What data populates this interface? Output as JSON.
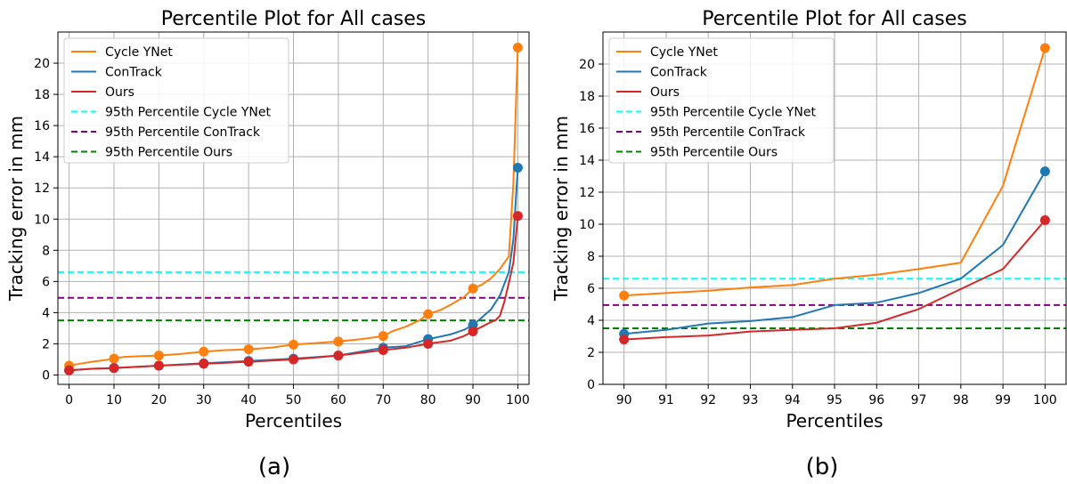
{
  "colors": {
    "cycle_ynet": "#ff7f0e",
    "contrack": "#1f77b4",
    "ours": "#d62728",
    "p95_cycle_ynet": "#00ffff",
    "p95_contrack": "#800080",
    "p95_ours": "#008000"
  },
  "chart_data": [
    {
      "type": "line",
      "title": "Percentile Plot for All cases",
      "caption": "(a)",
      "xlabel": "Percentiles",
      "ylabel": "Tracking error in mm",
      "xlim": [
        -2.5,
        102.5
      ],
      "ylim": [
        -0.6,
        22
      ],
      "grid": true,
      "legend_position": "top-left",
      "x_ticks": [
        "0",
        "10",
        "20",
        "30",
        "40",
        "50",
        "60",
        "70",
        "80",
        "90",
        "100"
      ],
      "y_ticks": [
        "0",
        "2",
        "4",
        "6",
        "8",
        "10",
        "12",
        "14",
        "16",
        "18",
        "20"
      ],
      "series": [
        {
          "name": "Cycle YNet",
          "color_key": "cycle_ynet",
          "x": [
            0,
            2,
            5,
            8,
            10,
            12,
            15,
            20,
            25,
            30,
            35,
            40,
            45,
            50,
            55,
            60,
            65,
            70,
            72,
            75,
            78,
            80,
            83,
            85,
            88,
            90,
            92,
            94,
            96,
            98,
            99,
            100
          ],
          "y": [
            0.6,
            0.7,
            0.85,
            0.95,
            1.05,
            1.15,
            1.2,
            1.25,
            1.35,
            1.5,
            1.6,
            1.65,
            1.75,
            1.95,
            2.05,
            2.15,
            2.3,
            2.5,
            2.8,
            3.1,
            3.5,
            3.9,
            4.2,
            4.5,
            5.0,
            5.55,
            5.8,
            6.2,
            6.8,
            7.6,
            12.3,
            21.0
          ],
          "markers_x": [
            0,
            10,
            20,
            30,
            40,
            50,
            60,
            70,
            80,
            90,
            100
          ],
          "markers_y": [
            0.6,
            1.05,
            1.25,
            1.5,
            1.65,
            1.95,
            2.15,
            2.5,
            3.9,
            5.55,
            21.0
          ]
        },
        {
          "name": "ConTrack",
          "color_key": "contrack",
          "x": [
            0,
            5,
            10,
            20,
            30,
            40,
            50,
            60,
            70,
            75,
            80,
            85,
            88,
            90,
            92,
            94,
            96,
            98,
            99,
            100
          ],
          "y": [
            0.3,
            0.4,
            0.45,
            0.6,
            0.75,
            0.9,
            1.05,
            1.25,
            1.75,
            1.85,
            2.3,
            2.6,
            2.9,
            3.2,
            3.7,
            4.2,
            5.1,
            6.6,
            8.7,
            13.3
          ],
          "markers_x": [
            0,
            10,
            20,
            30,
            40,
            50,
            60,
            70,
            80,
            90,
            100
          ],
          "markers_y": [
            0.3,
            0.45,
            0.6,
            0.75,
            0.9,
            1.05,
            1.25,
            1.75,
            2.3,
            3.2,
            13.3
          ]
        },
        {
          "name": "Ours",
          "color_key": "ours",
          "x": [
            0,
            5,
            10,
            20,
            30,
            40,
            50,
            60,
            70,
            75,
            80,
            85,
            88,
            90,
            92,
            94,
            95,
            96,
            97,
            98,
            99,
            100
          ],
          "y": [
            0.3,
            0.4,
            0.45,
            0.6,
            0.72,
            0.85,
            1.0,
            1.25,
            1.6,
            1.75,
            2.0,
            2.2,
            2.5,
            2.8,
            3.1,
            3.4,
            3.5,
            3.8,
            4.7,
            5.9,
            7.2,
            10.2
          ],
          "markers_x": [
            0,
            10,
            20,
            30,
            40,
            50,
            60,
            70,
            80,
            90,
            100
          ],
          "markers_y": [
            0.3,
            0.45,
            0.6,
            0.72,
            0.85,
            1.0,
            1.25,
            1.6,
            2.0,
            2.8,
            10.2
          ]
        }
      ],
      "hlines": [
        {
          "name": "95th Percentile Cycle YNet",
          "y": 6.6,
          "color_key": "p95_cycle_ynet"
        },
        {
          "name": "95th Percentile ConTrack",
          "y": 4.95,
          "color_key": "p95_contrack"
        },
        {
          "name": "95th Percentile Ours",
          "y": 3.5,
          "color_key": "p95_ours"
        }
      ]
    },
    {
      "type": "line",
      "title": "Percentile Plot for All cases",
      "caption": "(b)",
      "xlabel": "Percentiles",
      "ylabel": "Tracking error in mm",
      "xlim": [
        89.5,
        100.5
      ],
      "ylim": [
        0,
        22
      ],
      "grid": true,
      "legend_position": "top-left",
      "x_ticks": [
        "90",
        "91",
        "92",
        "93",
        "94",
        "95",
        "96",
        "97",
        "98",
        "99",
        "100"
      ],
      "y_ticks": [
        "0",
        "2",
        "4",
        "6",
        "8",
        "10",
        "12",
        "14",
        "16",
        "18",
        "20"
      ],
      "series": [
        {
          "name": "Cycle YNet",
          "color_key": "cycle_ynet",
          "x": [
            90,
            91,
            92,
            93,
            94,
            95,
            96,
            97,
            98,
            99,
            100
          ],
          "y": [
            5.55,
            5.7,
            5.85,
            6.05,
            6.2,
            6.6,
            6.85,
            7.2,
            7.6,
            12.4,
            21.0
          ],
          "markers_x": [
            90,
            100
          ],
          "markers_y": [
            5.55,
            21.0
          ]
        },
        {
          "name": "ConTrack",
          "color_key": "contrack",
          "x": [
            90,
            91,
            92,
            93,
            94,
            95,
            96,
            97,
            98,
            99,
            100
          ],
          "y": [
            3.15,
            3.4,
            3.8,
            3.95,
            4.2,
            4.95,
            5.1,
            5.7,
            6.6,
            8.7,
            13.3
          ],
          "markers_x": [
            90,
            100
          ],
          "markers_y": [
            3.15,
            13.3
          ]
        },
        {
          "name": "Ours",
          "color_key": "ours",
          "x": [
            90,
            91,
            92,
            93,
            94,
            95,
            96,
            97,
            98,
            99,
            100
          ],
          "y": [
            2.8,
            2.95,
            3.05,
            3.3,
            3.4,
            3.5,
            3.85,
            4.7,
            5.95,
            7.2,
            10.25
          ],
          "markers_x": [
            90,
            100
          ],
          "markers_y": [
            2.8,
            10.25
          ]
        }
      ],
      "hlines": [
        {
          "name": "95th Percentile Cycle YNet",
          "y": 6.6,
          "color_key": "p95_cycle_ynet"
        },
        {
          "name": "95th Percentile ConTrack",
          "y": 4.95,
          "color_key": "p95_contrack"
        },
        {
          "name": "95th Percentile Ours",
          "y": 3.5,
          "color_key": "p95_ours"
        }
      ]
    }
  ]
}
